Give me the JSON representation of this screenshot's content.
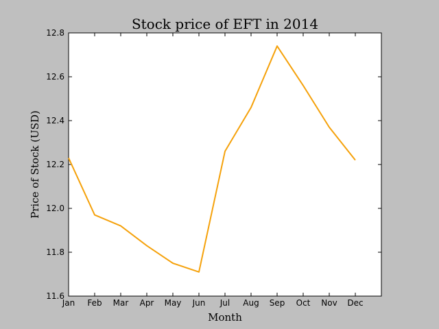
{
  "chart_data": {
    "type": "line",
    "title": "Stock price of EFT in 2014",
    "xlabel": "Month",
    "ylabel": "Price of Stock (USD)",
    "categories": [
      "Jan",
      "Feb",
      "Mar",
      "Apr",
      "May",
      "Jun",
      "Jul",
      "Aug",
      "Sep",
      "Oct",
      "Nov",
      "Dec"
    ],
    "series": [
      {
        "values": [
          12.23,
          11.97,
          11.92,
          11.83,
          11.75,
          11.71,
          12.26,
          12.46,
          12.74,
          12.56,
          12.37,
          12.22
        ],
        "color": "#f5a10a"
      }
    ],
    "ylim": [
      11.6,
      12.8
    ],
    "yticks": [
      "11.6",
      "11.8",
      "12.0",
      "12.2",
      "12.4",
      "12.6",
      "12.8"
    ],
    "background": "#bfbfbf",
    "plot_background": "#ffffff",
    "grid": false,
    "legend": "none"
  }
}
